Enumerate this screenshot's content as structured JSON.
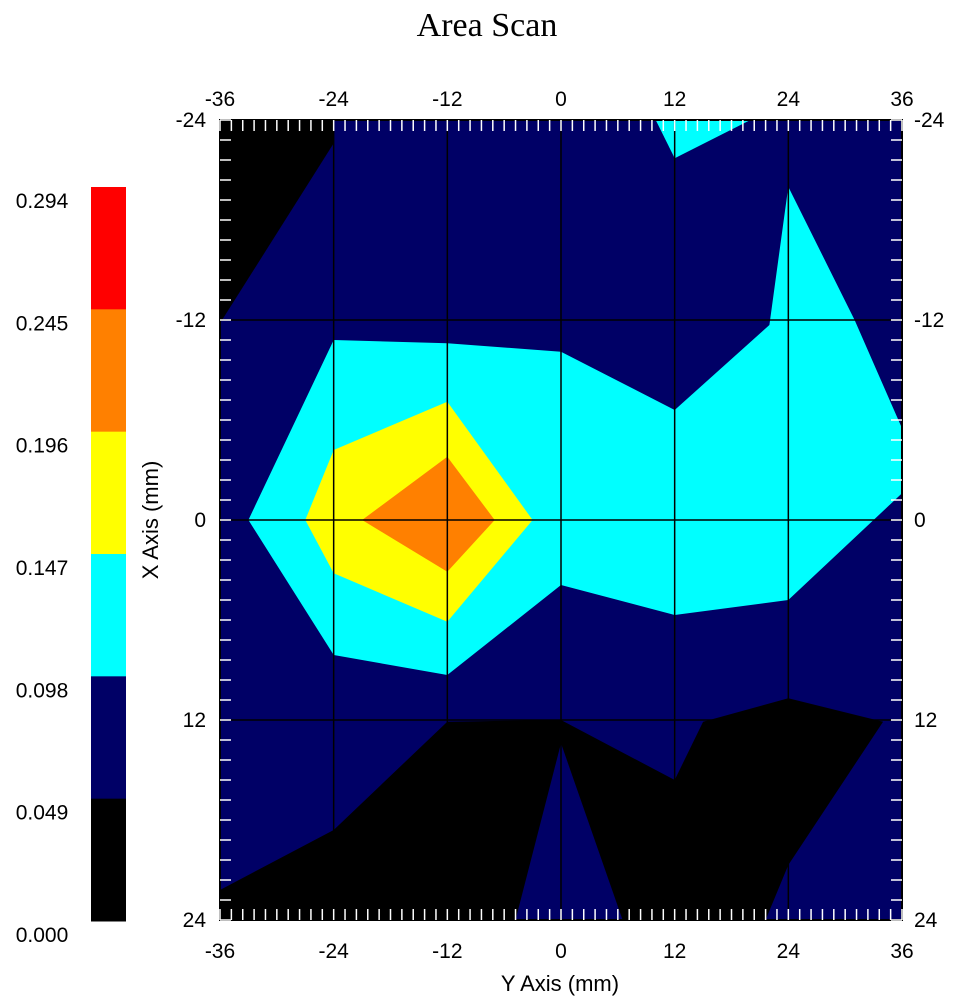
{
  "chart_data": {
    "type": "heatmap",
    "title": "Area Scan",
    "xlabel": "Y Axis (mm)",
    "ylabel": "X Axis (mm)",
    "x_ticks": [
      "-36",
      "-24",
      "-12",
      "0",
      "12",
      "24",
      "36"
    ],
    "y_ticks": [
      "-24",
      "-12",
      "0",
      "12",
      "24"
    ],
    "xlim": [
      -36,
      36
    ],
    "ylim": [
      -24,
      24
    ],
    "grid": true,
    "legend_position": "left",
    "colorbar": {
      "labels": [
        "0.294",
        "0.245",
        "0.196",
        "0.147",
        "0.098",
        "0.049",
        "0.000"
      ],
      "bands": [
        {
          "min": 0.0,
          "max": 0.049,
          "color": "#000000"
        },
        {
          "min": 0.049,
          "max": 0.098,
          "color": "#000066"
        },
        {
          "min": 0.098,
          "max": 0.147,
          "color": "#00ffff"
        },
        {
          "min": 0.147,
          "max": 0.196,
          "color": "#ffff00"
        },
        {
          "min": 0.196,
          "max": 0.245,
          "color": "#ff8000"
        },
        {
          "min": 0.245,
          "max": 0.294,
          "color": "#ff0000"
        }
      ]
    },
    "regions": [
      {
        "level": "0.000-0.049",
        "color": "#000000",
        "points": [
          [
            -36,
            -24
          ],
          [
            -24,
            -24
          ],
          [
            -24,
            -22.6
          ],
          [
            -36,
            -11.8
          ]
        ]
      },
      {
        "level": "0.098-0.147",
        "color": "#00ffff",
        "points": [
          [
            10,
            -24
          ],
          [
            20,
            -24
          ],
          [
            12,
            -21.7
          ]
        ]
      },
      {
        "level": "0.098-0.147",
        "color": "#00ffff",
        "points": [
          [
            -33,
            0
          ],
          [
            -24,
            -10.8
          ],
          [
            -12,
            -10.6
          ],
          [
            0,
            -10.1
          ],
          [
            12,
            -6.6
          ],
          [
            22,
            -11.7
          ],
          [
            24,
            -20
          ],
          [
            31,
            -12
          ],
          [
            36,
            -5.5
          ],
          [
            36,
            -1.6
          ],
          [
            24,
            4.8
          ],
          [
            12,
            5.7
          ],
          [
            0,
            3.9
          ],
          [
            -12,
            9.3
          ],
          [
            -24,
            8.1
          ]
        ]
      },
      {
        "level": "0.147-0.196",
        "color": "#ffff00",
        "points": [
          [
            -27,
            0
          ],
          [
            -24,
            -4.2
          ],
          [
            -12,
            -7.1
          ],
          [
            -3,
            0
          ],
          [
            -12,
            6.1
          ],
          [
            -24,
            3.2
          ]
        ]
      },
      {
        "level": "0.196-0.245",
        "color": "#ff8000",
        "points": [
          [
            -21,
            0
          ],
          [
            -12,
            -3.8
          ],
          [
            -7,
            0
          ],
          [
            -12,
            3.1
          ]
        ]
      },
      {
        "level": "0.000-0.049",
        "color": "#000000",
        "points": [
          [
            -36,
            22.2
          ],
          [
            -24,
            18.6
          ],
          [
            -12,
            12.1
          ],
          [
            0,
            12
          ],
          [
            12,
            15.6
          ],
          [
            15,
            12.1
          ],
          [
            24,
            10.7
          ],
          [
            34,
            12.1
          ],
          [
            24,
            20.7
          ],
          [
            21.6,
            24
          ],
          [
            6.5,
            24
          ],
          [
            0,
            13.4
          ],
          [
            -4.8,
            24
          ],
          [
            -36,
            24
          ]
        ]
      }
    ]
  }
}
